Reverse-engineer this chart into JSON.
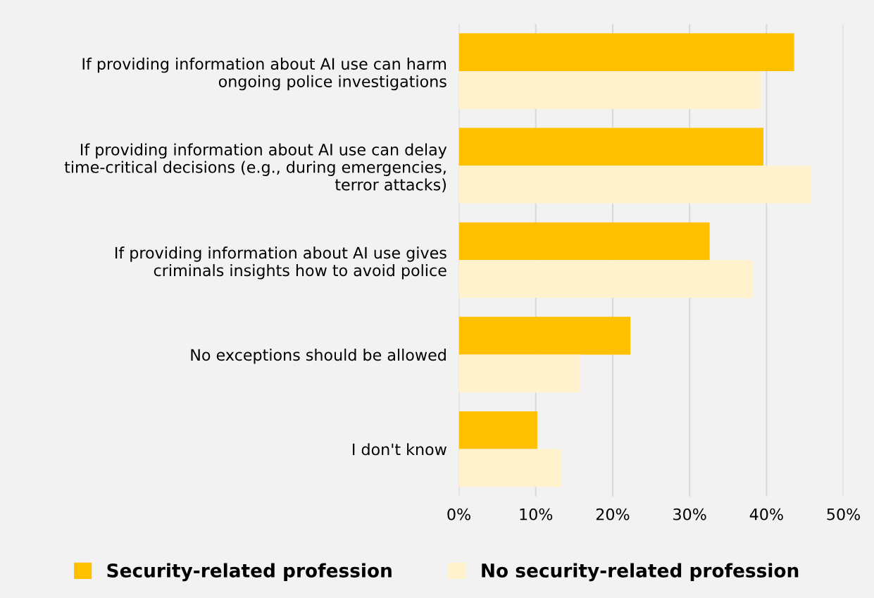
{
  "chart_data": {
    "type": "bar",
    "orientation": "horizontal",
    "categories": [
      "If providing information about AI use can harm\nongoing police investigations",
      "If providing information about AI use can delay\ntime-critical decisions (e.g., during emergencies,\nterror attacks)",
      "If providing information about AI use gives\ncriminals insights how to avoid police",
      "No exceptions should be allowed",
      "I don't know"
    ],
    "series": [
      {
        "name": "Security-related profession",
        "color": "#ffc000",
        "values": [
          43.6,
          39.6,
          32.6,
          22.3,
          10.2
        ]
      },
      {
        "name": "No security-related profession",
        "color": "#fff2cc",
        "values": [
          39.3,
          45.8,
          38.2,
          15.8,
          13.3
        ]
      }
    ],
    "xlim": [
      0,
      50
    ],
    "xticks": [
      {
        "value": 0,
        "label": "0%"
      },
      {
        "value": 10,
        "label": "10%"
      },
      {
        "value": 20,
        "label": "20%"
      },
      {
        "value": 30,
        "label": "30%"
      },
      {
        "value": 40,
        "label": "40%"
      },
      {
        "value": 50,
        "label": "50%"
      }
    ],
    "grid": "x",
    "legend": "bottom"
  }
}
